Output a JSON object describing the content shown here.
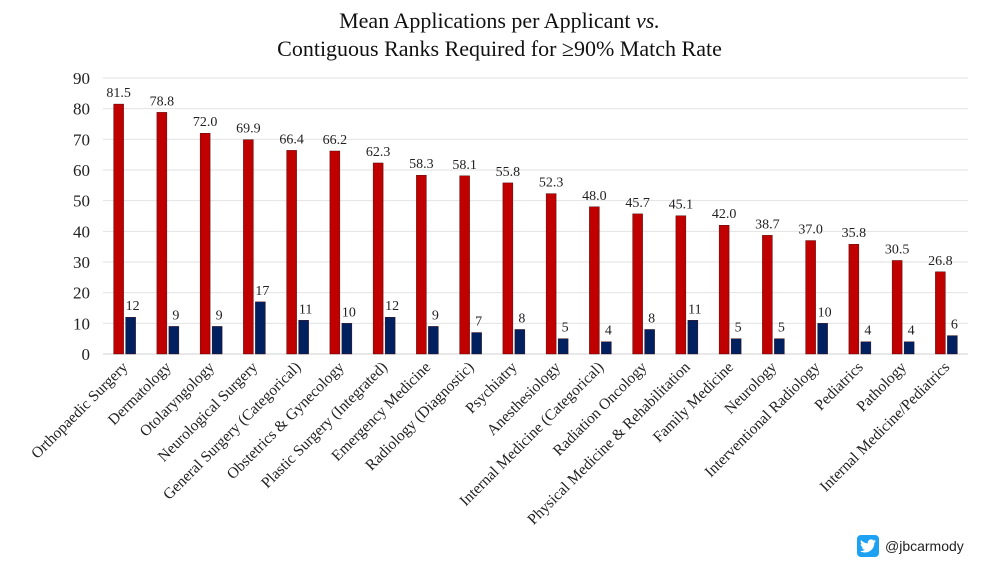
{
  "chart_data": {
    "type": "bar",
    "title_line1": "Mean Applications per Applicant",
    "title_italic": "vs.",
    "title_line2": "Contiguous Ranks Required for ≥90% Match Rate",
    "categories": [
      "Orthopaedic Surgery",
      "Dermatology",
      "Otolaryngology",
      "Neurological Surgery",
      "General Surgery (Categorical)",
      "Obstetrics & Gynecology",
      "Plastic Surgery (Integrated)",
      "Emergency Medicine",
      "Radiology (Diagnostic)",
      "Psychiatry",
      "Anesthesiology",
      "Internal Medicine (Categorical)",
      "Radiation Oncology",
      "Physical Medicine & Rehabilitation",
      "Family Medicine",
      "Neurology",
      "Interventional Radiology",
      "Pediatrics",
      "Pathology",
      "Internal Medicine/Pediatrics"
    ],
    "series": [
      {
        "name": "Mean Applications per Applicant",
        "color": "#c00000",
        "values": [
          81.5,
          78.8,
          72.0,
          69.9,
          66.4,
          66.2,
          62.3,
          58.3,
          58.1,
          55.8,
          52.3,
          48.0,
          45.7,
          45.1,
          42.0,
          38.7,
          37.0,
          35.8,
          30.5,
          26.8
        ],
        "labels": [
          "81.5",
          "78.8",
          "72.0",
          "69.9",
          "66.4",
          "66.2",
          "62.3",
          "58.3",
          "58.1",
          "55.8",
          "52.3",
          "48.0",
          "45.7",
          "45.1",
          "42.0",
          "38.7",
          "37.0",
          "35.8",
          "30.5",
          "26.8"
        ]
      },
      {
        "name": "Contiguous Ranks Required for ≥90% Match Rate",
        "color": "#002060",
        "values": [
          12,
          9,
          9,
          17,
          11,
          10,
          12,
          9,
          7,
          8,
          5,
          4,
          8,
          11,
          5,
          5,
          10,
          4,
          4,
          6
        ],
        "labels": [
          "12",
          "9",
          "9",
          "17",
          "11",
          "10",
          "12",
          "9",
          "7",
          "8",
          "5",
          "4",
          "8",
          "11",
          "5",
          "5",
          "10",
          "4",
          "4",
          "6"
        ]
      }
    ],
    "ylim": [
      0,
      90
    ],
    "yticks": [
      "0",
      "10",
      "20",
      "30",
      "40",
      "50",
      "60",
      "70",
      "80",
      "90"
    ],
    "grid": true,
    "xlabel": "",
    "ylabel": ""
  },
  "watermark": {
    "handle": "@jbcarmody",
    "icon": "twitter-bird-icon"
  }
}
